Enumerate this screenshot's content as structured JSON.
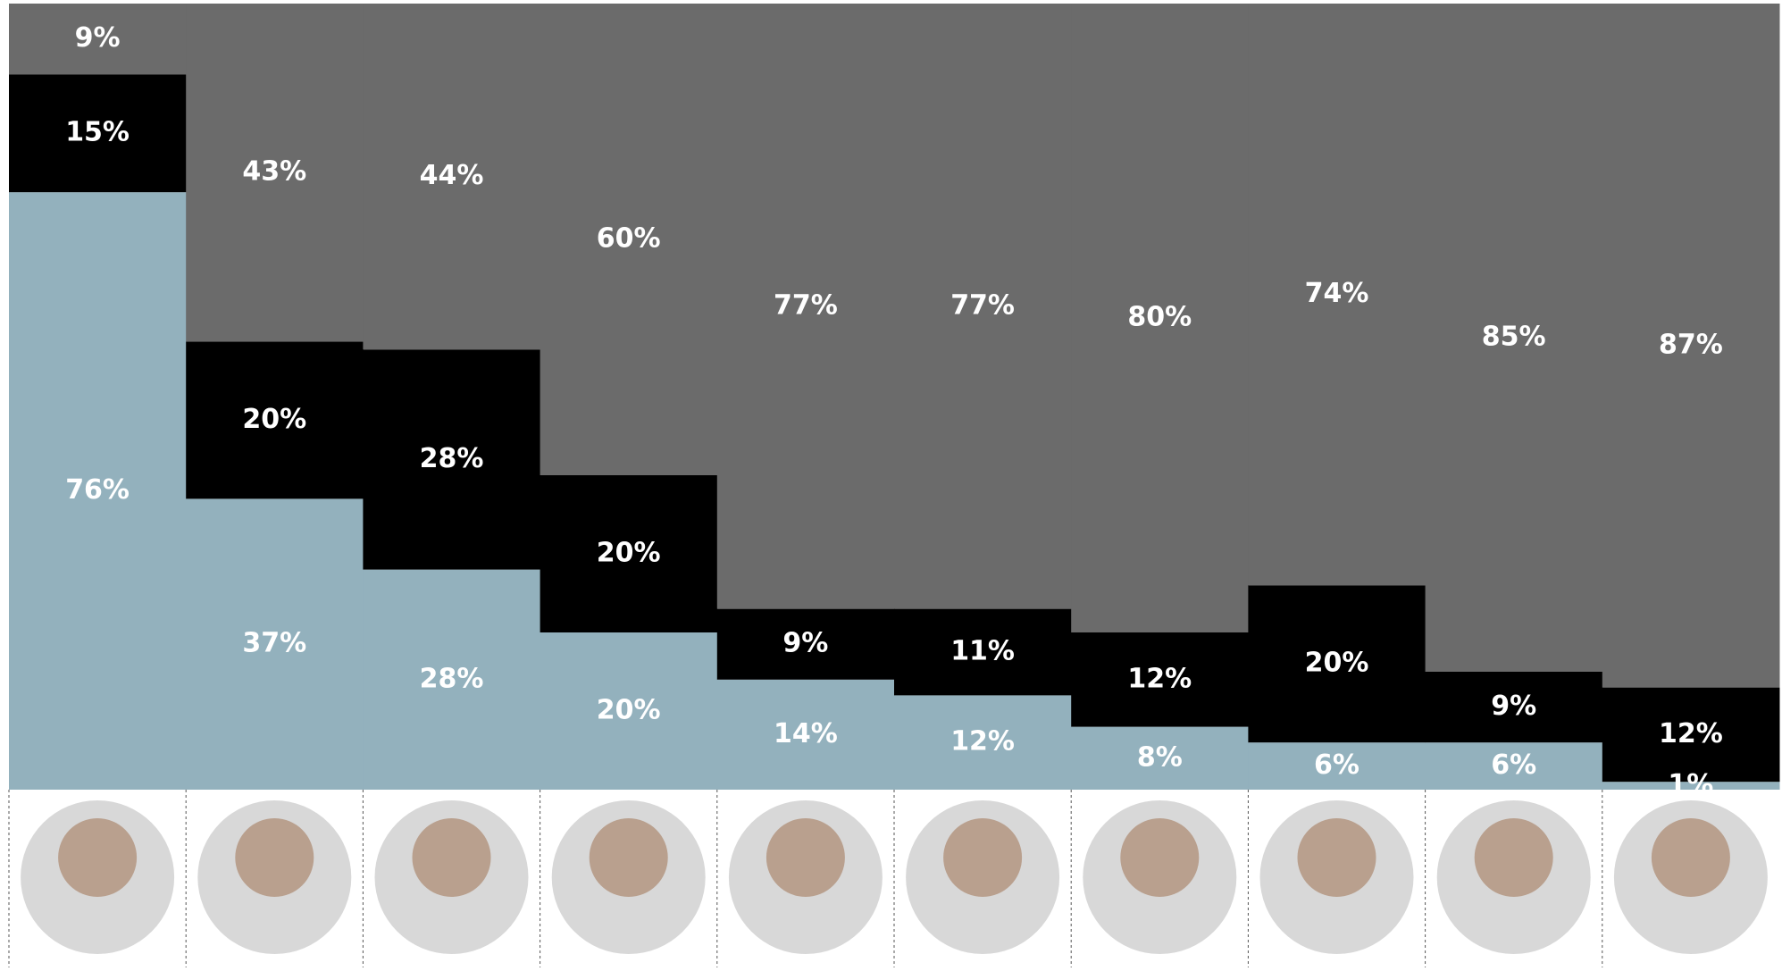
{
  "chart_data": {
    "type": "bar",
    "stacked": true,
    "series": [
      {
        "color": "#93b1bd",
        "values": [
          76,
          37,
          28,
          20,
          14,
          12,
          8,
          6,
          6,
          1
        ],
        "value_labels": [
          "76%",
          "37%",
          "28%",
          "20%",
          "14%",
          "12%",
          "8%",
          "6%",
          "6%",
          "1%"
        ]
      },
      {
        "color": "#000000",
        "values": [
          15,
          20,
          28,
          20,
          9,
          11,
          12,
          20,
          9,
          12
        ],
        "value_labels": [
          "15%",
          "20%",
          "28%",
          "20%",
          "9%",
          "11%",
          "12%",
          "20%",
          "9%",
          "12%"
        ]
      },
      {
        "color": "#6b6b6b",
        "values": [
          9,
          43,
          44,
          60,
          77,
          77,
          80,
          74,
          85,
          87
        ],
        "value_labels": [
          "9%",
          "43%",
          "44%",
          "60%",
          "77%",
          "77%",
          "80%",
          "74%",
          "85%",
          "87%"
        ]
      }
    ]
  }
}
